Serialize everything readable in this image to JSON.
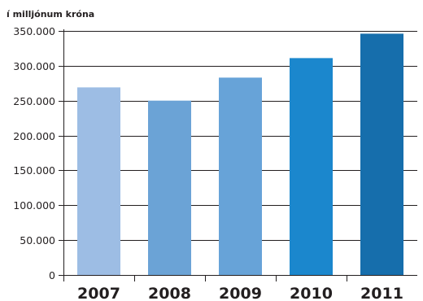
{
  "chart_data": {
    "type": "bar",
    "title": "",
    "unit_label": "í milljónum króna",
    "categories": [
      "2007",
      "2008",
      "2009",
      "2010",
      "2011"
    ],
    "values": [
      269000,
      250000,
      283000,
      311000,
      346000
    ],
    "colors": [
      "#9dbde4",
      "#6ba3d6",
      "#67a3d8",
      "#1b87cd",
      "#166eac"
    ],
    "ylim": [
      0,
      350000
    ],
    "yticks": [
      0,
      50000,
      100000,
      150000,
      200000,
      250000,
      300000,
      350000
    ],
    "ytick_labels": [
      "0",
      "50.000",
      "100.000",
      "150.000",
      "200.000",
      "250.000",
      "300.000",
      "350.000"
    ],
    "grid": true,
    "legend": "none"
  }
}
